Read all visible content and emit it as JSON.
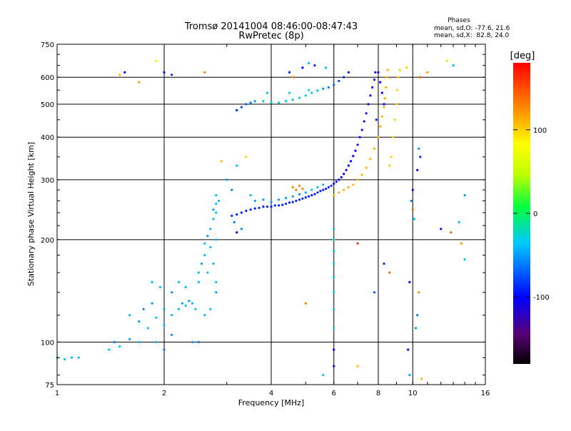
{
  "chart_data": {
    "type": "scatter",
    "title": "Tromsø 20141004 08:46:00-08:47:43",
    "subtitle": "RwPretec (8p)",
    "xlabel": "Frequency [MHz]",
    "ylabel": "Stationary phase Virtual Height [km]",
    "x_scale": "log",
    "y_scale": "log",
    "xlim": [
      1,
      16
    ],
    "ylim": [
      75,
      750
    ],
    "grid": true,
    "x_ticks": [
      1,
      2,
      4,
      6,
      8,
      10,
      16
    ],
    "x_tick_labels": [
      "1",
      "2",
      "4",
      "6",
      "8",
      "10",
      "16"
    ],
    "y_ticks": [
      75,
      100,
      200,
      300,
      400,
      500,
      600,
      750
    ],
    "y_tick_labels": [
      "75",
      "100",
      "200",
      "300",
      "400",
      "500",
      "600",
      "750"
    ],
    "stats": {
      "heading": "Phases",
      "line_o": "mean, sd,O: -77.6, 21.6",
      "line_x": "mean, sd,X:  82.8, 24.0"
    },
    "colorbar": {
      "label": "[deg]",
      "range": [
        -180,
        180
      ],
      "ticks": [
        100,
        0,
        -100
      ],
      "tick_labels": [
        "100",
        "0",
        "-100"
      ]
    },
    "series": [
      {
        "points": [
          [
            1.0,
            90,
            -40
          ],
          [
            1.05,
            89,
            -40
          ],
          [
            1.1,
            90,
            -40
          ],
          [
            1.15,
            90,
            -40
          ],
          [
            1.4,
            95,
            -40
          ],
          [
            1.45,
            100,
            -60
          ],
          [
            1.5,
            97,
            -40
          ],
          [
            1.6,
            102,
            -50
          ],
          [
            1.7,
            100,
            -40
          ],
          [
            1.6,
            120,
            -40
          ],
          [
            1.7,
            115,
            -50
          ],
          [
            1.8,
            110,
            -40
          ],
          [
            1.75,
            125,
            -60
          ],
          [
            1.9,
            118,
            -40
          ],
          [
            1.85,
            130,
            -50
          ],
          [
            1.9,
            100,
            -40
          ],
          [
            2.0,
            95,
            -60
          ],
          [
            2.0,
            112,
            -40
          ],
          [
            2.0,
            125,
            -50
          ],
          [
            2.1,
            120,
            -40
          ],
          [
            2.1,
            105,
            -60
          ],
          [
            2.2,
            125,
            -40
          ],
          [
            2.25,
            130,
            -50
          ],
          [
            2.3,
            128,
            -40
          ],
          [
            2.35,
            132,
            -50
          ],
          [
            2.4,
            130,
            -40
          ],
          [
            2.45,
            125,
            -40
          ],
          [
            1.95,
            145,
            -40
          ],
          [
            2.1,
            140,
            -50
          ],
          [
            2.2,
            150,
            -40
          ],
          [
            2.3,
            145,
            -40
          ],
          [
            2.4,
            100,
            -50
          ],
          [
            2.5,
            100,
            -60
          ],
          [
            1.85,
            150,
            -40
          ],
          [
            2.5,
            150,
            -40
          ],
          [
            2.5,
            160,
            -40
          ],
          [
            2.55,
            170,
            -50
          ],
          [
            2.6,
            180,
            -40
          ],
          [
            2.6,
            195,
            -40
          ],
          [
            2.65,
            205,
            -50
          ],
          [
            2.7,
            215,
            -40
          ],
          [
            2.75,
            230,
            -40
          ],
          [
            2.75,
            245,
            -50
          ],
          [
            2.8,
            255,
            -40
          ],
          [
            2.85,
            260,
            -40
          ],
          [
            2.8,
            240,
            -40
          ],
          [
            2.7,
            190,
            -40
          ],
          [
            2.75,
            170,
            -40
          ],
          [
            2.8,
            150,
            -40
          ],
          [
            2.8,
            140,
            -50
          ],
          [
            2.7,
            125,
            -40
          ],
          [
            2.6,
            120,
            -40
          ],
          [
            2.8,
            200,
            -40
          ],
          [
            2.65,
            160,
            -40
          ],
          [
            3.1,
            235,
            -90
          ],
          [
            3.2,
            237,
            -90
          ],
          [
            3.3,
            240,
            -90
          ],
          [
            3.4,
            243,
            -90
          ],
          [
            3.5,
            245,
            -90
          ],
          [
            3.6,
            247,
            -90
          ],
          [
            3.7,
            248,
            -90
          ],
          [
            3.8,
            250,
            -90
          ],
          [
            3.9,
            250,
            -90
          ],
          [
            4.0,
            250,
            -90
          ],
          [
            4.1,
            252,
            -90
          ],
          [
            4.2,
            252,
            -90
          ],
          [
            4.3,
            253,
            -90
          ],
          [
            4.4,
            255,
            -90
          ],
          [
            4.5,
            257,
            -90
          ],
          [
            4.6,
            258,
            -90
          ],
          [
            4.7,
            260,
            -90
          ],
          [
            4.8,
            262,
            -90
          ],
          [
            4.9,
            264,
            -90
          ],
          [
            5.0,
            266,
            -90
          ],
          [
            5.1,
            268,
            -90
          ],
          [
            5.2,
            270,
            -90
          ],
          [
            5.3,
            272,
            -90
          ],
          [
            5.4,
            275,
            -90
          ],
          [
            5.5,
            278,
            -90
          ],
          [
            5.6,
            280,
            -90
          ],
          [
            5.7,
            282,
            -90
          ],
          [
            5.8,
            285,
            -90
          ],
          [
            5.9,
            288,
            -90
          ],
          [
            6.0,
            292,
            -95
          ],
          [
            6.1,
            296,
            -95
          ],
          [
            6.2,
            300,
            -95
          ],
          [
            6.3,
            305,
            -100
          ],
          [
            6.4,
            312,
            -100
          ],
          [
            6.5,
            320,
            -100
          ],
          [
            6.6,
            330,
            -100
          ],
          [
            6.7,
            340,
            -100
          ],
          [
            6.8,
            352,
            -100
          ],
          [
            6.9,
            365,
            -100
          ],
          [
            7.0,
            380,
            -110
          ],
          [
            7.1,
            400,
            -110
          ],
          [
            7.2,
            420,
            -110
          ],
          [
            7.3,
            445,
            -110
          ],
          [
            7.4,
            470,
            -110
          ],
          [
            7.5,
            500,
            -110
          ],
          [
            7.6,
            530,
            -110
          ],
          [
            7.7,
            560,
            -110
          ],
          [
            7.8,
            590,
            -110
          ],
          [
            7.85,
            620,
            -110
          ],
          [
            3.6,
            260,
            -50
          ],
          [
            3.8,
            262,
            -50
          ],
          [
            4.0,
            258,
            -50
          ],
          [
            4.2,
            262,
            -50
          ],
          [
            4.4,
            265,
            -50
          ],
          [
            4.6,
            268,
            -50
          ],
          [
            4.8,
            272,
            -50
          ],
          [
            5.0,
            275,
            -50
          ],
          [
            5.2,
            280,
            -40
          ],
          [
            5.4,
            285,
            -40
          ],
          [
            5.6,
            290,
            -40
          ],
          [
            4.6,
            285,
            130
          ],
          [
            4.7,
            280,
            130
          ],
          [
            4.8,
            288,
            130
          ],
          [
            4.9,
            282,
            130
          ],
          [
            3.2,
            480,
            -90
          ],
          [
            3.3,
            490,
            -80
          ],
          [
            3.4,
            500,
            -70
          ],
          [
            3.5,
            505,
            -60
          ],
          [
            3.6,
            510,
            -50
          ],
          [
            3.8,
            510,
            -40
          ],
          [
            4.0,
            505,
            -30
          ],
          [
            4.2,
            505,
            -30
          ],
          [
            4.4,
            510,
            -30
          ],
          [
            4.6,
            515,
            -30
          ],
          [
            4.8,
            522,
            -30
          ],
          [
            5.0,
            530,
            -30
          ],
          [
            5.2,
            540,
            -40
          ],
          [
            5.4,
            548,
            -40
          ],
          [
            5.6,
            555,
            -50
          ],
          [
            5.8,
            560,
            -60
          ],
          [
            6.0,
            570,
            -70
          ],
          [
            6.2,
            585,
            -80
          ],
          [
            6.4,
            600,
            -90
          ],
          [
            6.6,
            620,
            -90
          ],
          [
            3.9,
            540,
            -40
          ],
          [
            4.5,
            540,
            -30
          ],
          [
            5.1,
            550,
            -30
          ],
          [
            6.0,
            270,
            110
          ],
          [
            6.2,
            275,
            110
          ],
          [
            6.4,
            280,
            110
          ],
          [
            6.6,
            285,
            110
          ],
          [
            6.8,
            290,
            110
          ],
          [
            7.0,
            300,
            110
          ],
          [
            7.2,
            310,
            110
          ],
          [
            7.4,
            325,
            110
          ],
          [
            7.6,
            345,
            110
          ],
          [
            7.8,
            370,
            110
          ],
          [
            8.0,
            400,
            110
          ],
          [
            8.1,
            430,
            110
          ],
          [
            8.2,
            460,
            110
          ],
          [
            8.3,
            490,
            110
          ],
          [
            8.35,
            520,
            110
          ],
          [
            8.4,
            560,
            110
          ],
          [
            8.45,
            600,
            110
          ],
          [
            8.5,
            630,
            110
          ],
          [
            8.8,
            400,
            100
          ],
          [
            8.9,
            450,
            100
          ],
          [
            9.0,
            500,
            100
          ],
          [
            9.05,
            550,
            100
          ],
          [
            9.1,
            600,
            100
          ],
          [
            9.2,
            630,
            100
          ],
          [
            8.7,
            350,
            100
          ],
          [
            8.6,
            330,
            100
          ],
          [
            8.0,
            620,
            -110
          ],
          [
            8.1,
            580,
            -100
          ],
          [
            8.2,
            540,
            -100
          ],
          [
            8.3,
            500,
            -100
          ],
          [
            7.9,
            450,
            -100
          ],
          [
            6.0,
            215,
            -30
          ],
          [
            6.0,
            200,
            -30
          ],
          [
            6.0,
            185,
            -30
          ],
          [
            6.0,
            170,
            -30
          ],
          [
            6.0,
            155,
            -30
          ],
          [
            6.0,
            140,
            -30
          ],
          [
            6.0,
            125,
            -30
          ],
          [
            6.0,
            110,
            -30
          ],
          [
            6.0,
            95,
            -100
          ],
          [
            6.0,
            85,
            -100
          ],
          [
            1.5,
            610,
            110
          ],
          [
            1.55,
            620,
            -100
          ],
          [
            1.9,
            670,
            60
          ],
          [
            2.0,
            620,
            -100
          ],
          [
            2.1,
            610,
            -90
          ],
          [
            2.6,
            620,
            130
          ],
          [
            4.9,
            640,
            -100
          ],
          [
            5.1,
            660,
            -40
          ],
          [
            5.3,
            650,
            -90
          ],
          [
            5.7,
            640,
            -40
          ],
          [
            9.6,
            640,
            100
          ],
          [
            10.5,
            600,
            140
          ],
          [
            11.0,
            620,
            120
          ],
          [
            12.5,
            670,
            60
          ],
          [
            13.0,
            650,
            -40
          ],
          [
            10.4,
            370,
            -50
          ],
          [
            10.5,
            350,
            -90
          ],
          [
            10.3,
            320,
            -100
          ],
          [
            10.0,
            280,
            -100
          ],
          [
            9.9,
            260,
            -60
          ],
          [
            10.0,
            245,
            140
          ],
          [
            10.1,
            230,
            -40
          ],
          [
            12.0,
            215,
            -100
          ],
          [
            12.8,
            210,
            140
          ],
          [
            13.5,
            225,
            -40
          ],
          [
            14.0,
            270,
            -50
          ],
          [
            13.7,
            195,
            120
          ],
          [
            14.0,
            175,
            -40
          ],
          [
            7.0,
            195,
            160
          ],
          [
            8.3,
            170,
            -90
          ],
          [
            8.6,
            160,
            140
          ],
          [
            9.8,
            150,
            -100
          ],
          [
            10.4,
            140,
            120
          ],
          [
            7.8,
            140,
            -70
          ],
          [
            5.0,
            130,
            130
          ],
          [
            9.7,
            95,
            -100
          ],
          [
            10.2,
            110,
            -50
          ],
          [
            10.3,
            120,
            -60
          ],
          [
            9.8,
            80,
            -50
          ],
          [
            10.6,
            78,
            110
          ],
          [
            7.0,
            85,
            110
          ],
          [
            5.6,
            80,
            -30
          ],
          [
            3.1,
            280,
            -60
          ],
          [
            3.5,
            270,
            -40
          ],
          [
            3.4,
            350,
            100
          ],
          [
            3.2,
            330,
            -40
          ],
          [
            2.9,
            340,
            110
          ],
          [
            3.0,
            300,
            -50
          ],
          [
            3.2,
            210,
            -100
          ],
          [
            3.15,
            225,
            -60
          ],
          [
            3.3,
            215,
            -60
          ],
          [
            2.8,
            270,
            -40
          ],
          [
            4.5,
            620,
            -90
          ],
          [
            4.6,
            600,
            130
          ],
          [
            1.7,
            580,
            120
          ]
        ]
      }
    ]
  }
}
